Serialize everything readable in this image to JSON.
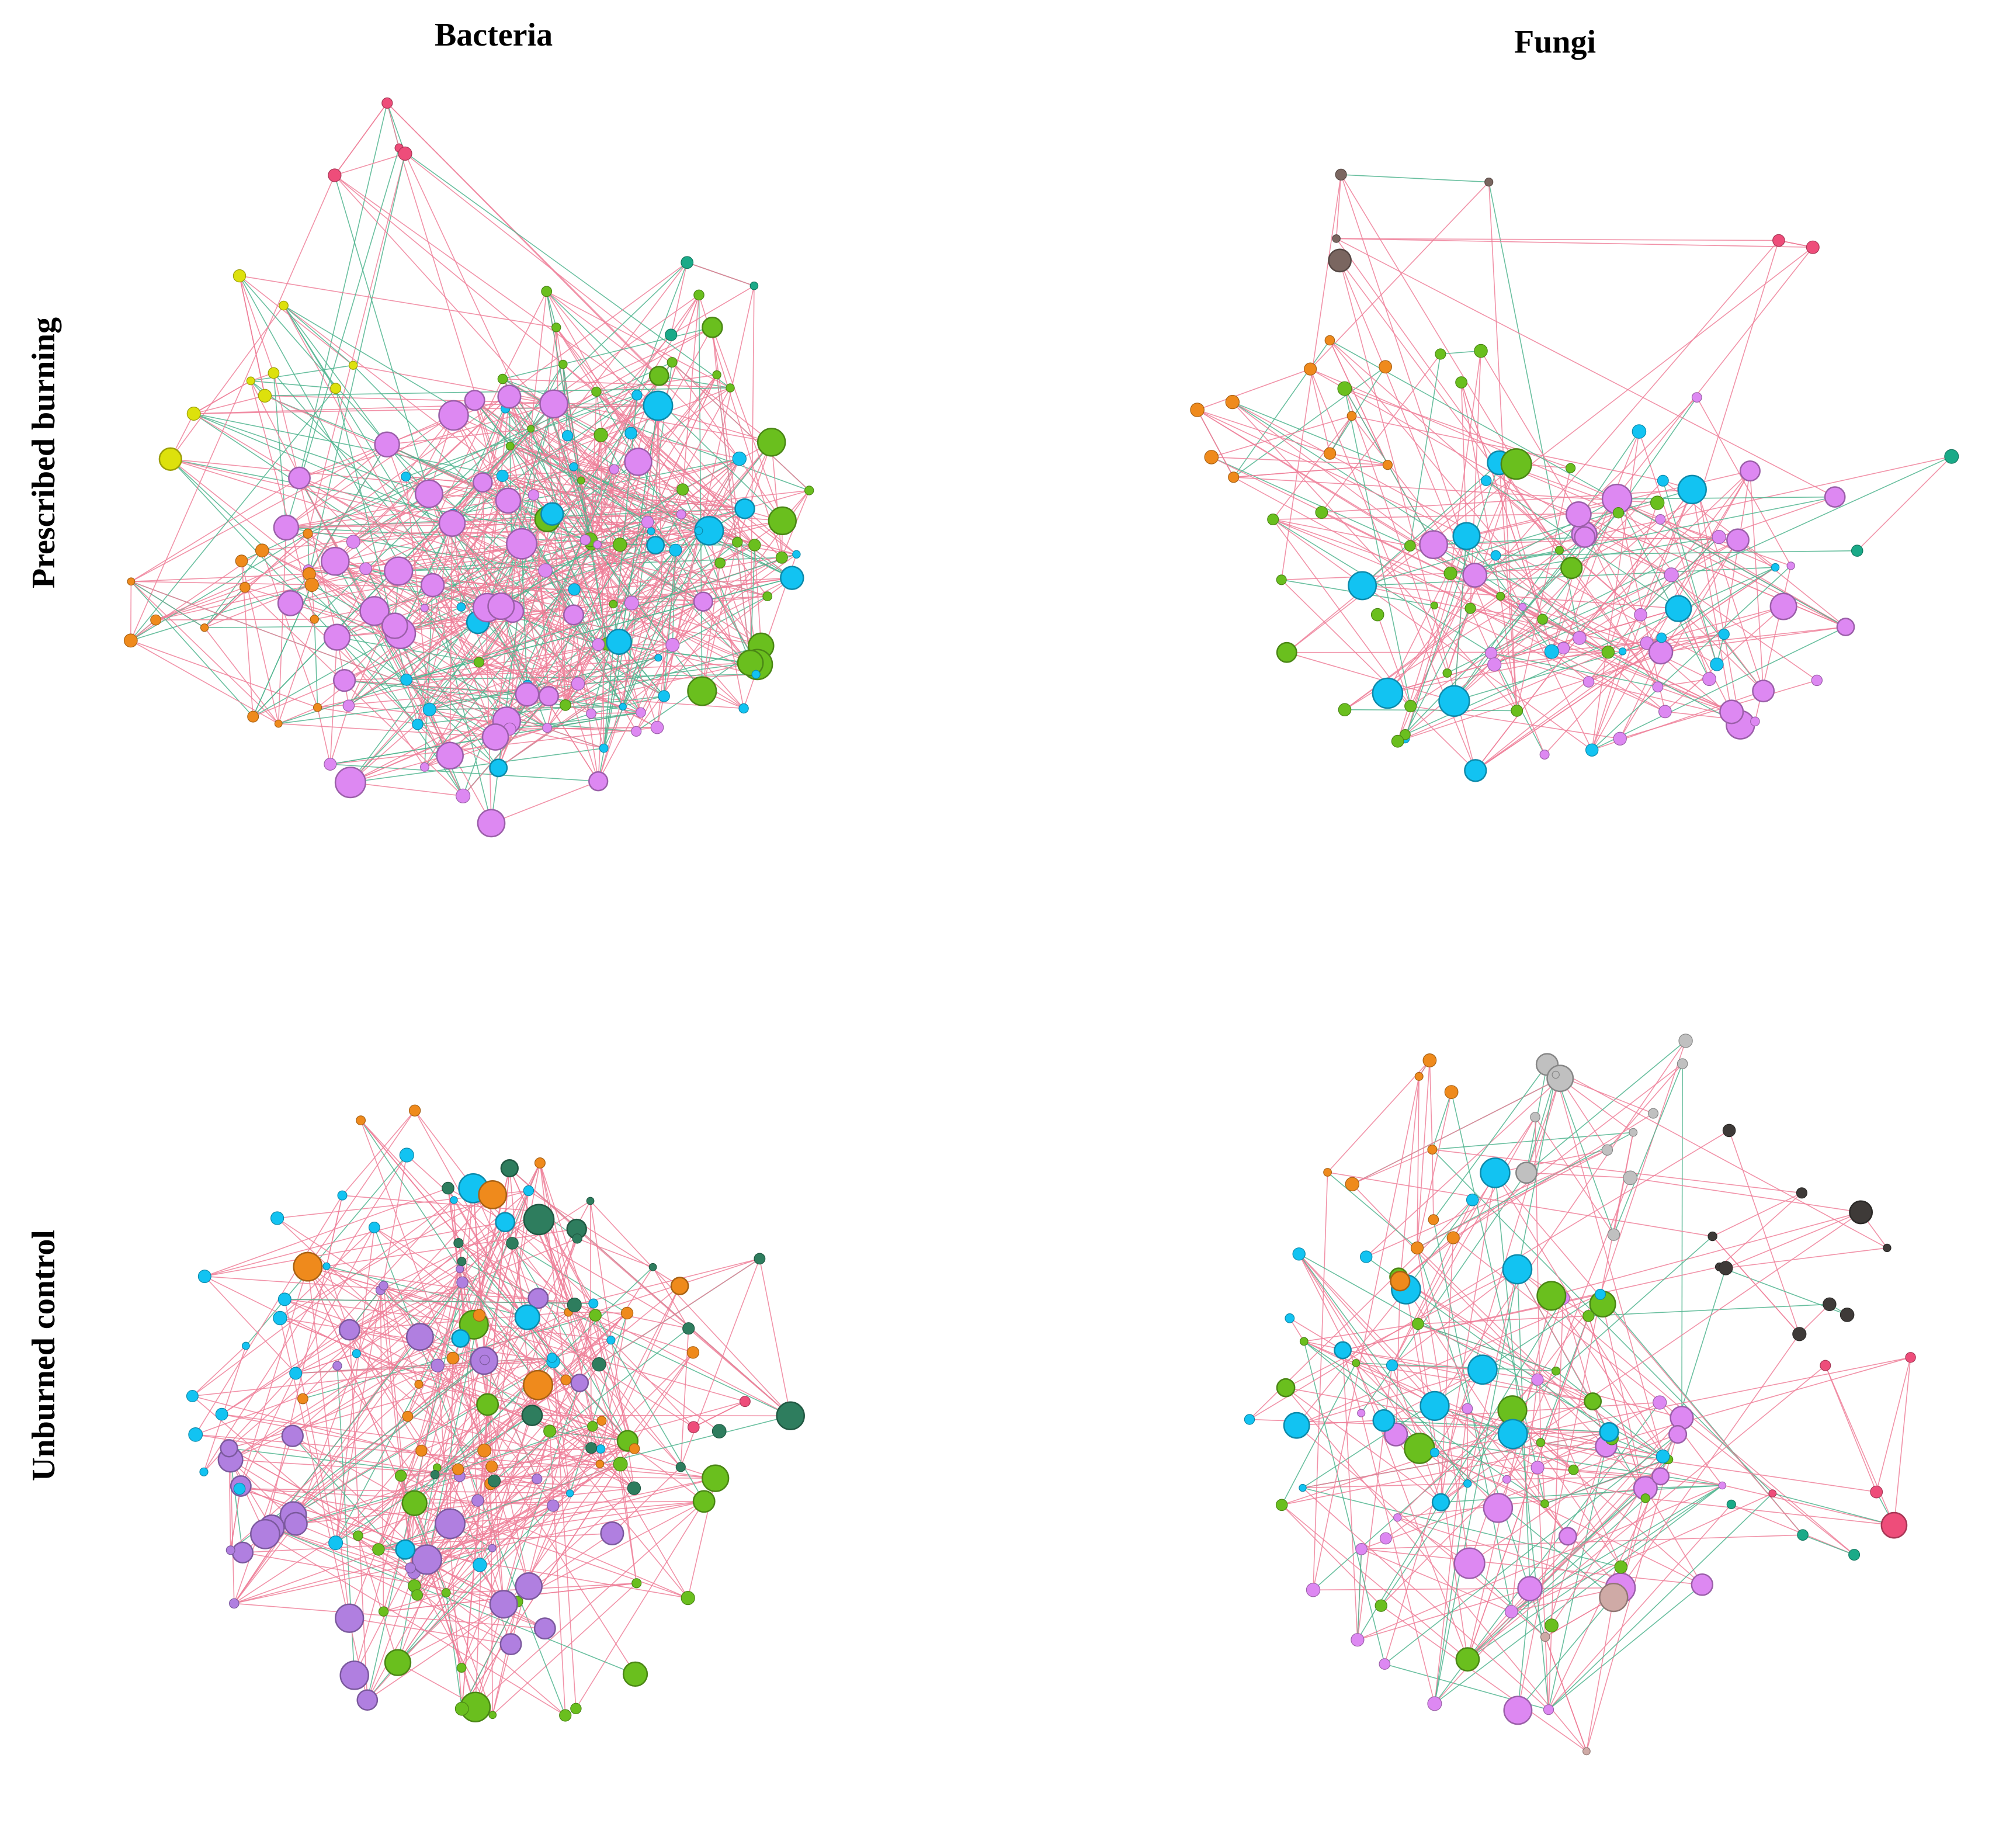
{
  "columns": {
    "bacteria": "Bacteria",
    "fungi": "Fungi"
  },
  "rows": {
    "prescribed": "Prescribed burning",
    "unburned": "Unburned control"
  },
  "colors": {
    "positive_edge": "#ee7f99",
    "negative_edge": "#4fb48e",
    "module_green": "#6abf1e",
    "module_cyan": "#12c3f2",
    "module_pink": "#dd88f2",
    "module_purple": "#b07fe0",
    "module_orange": "#ef8a1c",
    "module_yellow": "#dde10c",
    "module_red": "#ee4d7a",
    "module_darkgreen": "#2e7d5e",
    "module_teal": "#1aaa88",
    "module_brown": "#7a6660",
    "module_gray": "#c0c0c0",
    "module_dark": "#3e3a38",
    "module_tan": "#cfaaa6"
  },
  "panels": [
    {
      "id": "bacteria-prescribed",
      "modules": [
        {
          "color": "module_green",
          "count": 38,
          "hub": 0.3
        },
        {
          "color": "module_cyan",
          "count": 34,
          "hub": 0.4
        },
        {
          "color": "module_pink",
          "count": 60,
          "hub": 0.45
        },
        {
          "color": "module_orange",
          "count": 14,
          "hub": 0.1
        },
        {
          "color": "module_yellow",
          "count": 9,
          "hub": 0.35
        },
        {
          "color": "module_red",
          "count": 4,
          "hub": 0.1
        },
        {
          "color": "module_teal",
          "count": 3,
          "hub": 0.05
        }
      ],
      "edge_density": 0.9,
      "negative_share": 0.28
    },
    {
      "id": "fungi-prescribed",
      "modules": [
        {
          "color": "module_pink",
          "count": 36,
          "hub": 0.45
        },
        {
          "color": "module_cyan",
          "count": 20,
          "hub": 0.45
        },
        {
          "color": "module_green",
          "count": 28,
          "hub": 0.2
        },
        {
          "color": "module_orange",
          "count": 10,
          "hub": 0.05
        },
        {
          "color": "module_brown",
          "count": 4,
          "hub": 0.2
        },
        {
          "color": "module_red",
          "count": 2,
          "hub": 0.05
        },
        {
          "color": "module_teal",
          "count": 2,
          "hub": 0.05
        }
      ],
      "edge_density": 0.55,
      "negative_share": 0.25
    },
    {
      "id": "bacteria-unburned",
      "modules": [
        {
          "color": "module_green",
          "count": 30,
          "hub": 0.4
        },
        {
          "color": "module_purple",
          "count": 40,
          "hub": 0.45
        },
        {
          "color": "module_cyan",
          "count": 32,
          "hub": 0.2
        },
        {
          "color": "module_orange",
          "count": 24,
          "hub": 0.2
        },
        {
          "color": "module_darkgreen",
          "count": 22,
          "hub": 0.2
        },
        {
          "color": "module_red",
          "count": 2,
          "hub": 0.1
        }
      ],
      "edge_density": 0.6,
      "negative_share": 0.12
    },
    {
      "id": "fungi-unburned",
      "modules": [
        {
          "color": "module_pink",
          "count": 30,
          "hub": 0.45
        },
        {
          "color": "module_green",
          "count": 24,
          "hub": 0.45
        },
        {
          "color": "module_cyan",
          "count": 22,
          "hub": 0.45
        },
        {
          "color": "module_orange",
          "count": 10,
          "hub": 0.25
        },
        {
          "color": "module_gray",
          "count": 12,
          "hub": 0.2
        },
        {
          "color": "module_dark",
          "count": 10,
          "hub": 0.3
        },
        {
          "color": "module_red",
          "count": 5,
          "hub": 0.2
        },
        {
          "color": "module_teal",
          "count": 3,
          "hub": 0.2
        },
        {
          "color": "module_tan",
          "count": 3,
          "hub": 0.2
        }
      ],
      "edge_density": 0.5,
      "negative_share": 0.22
    }
  ]
}
